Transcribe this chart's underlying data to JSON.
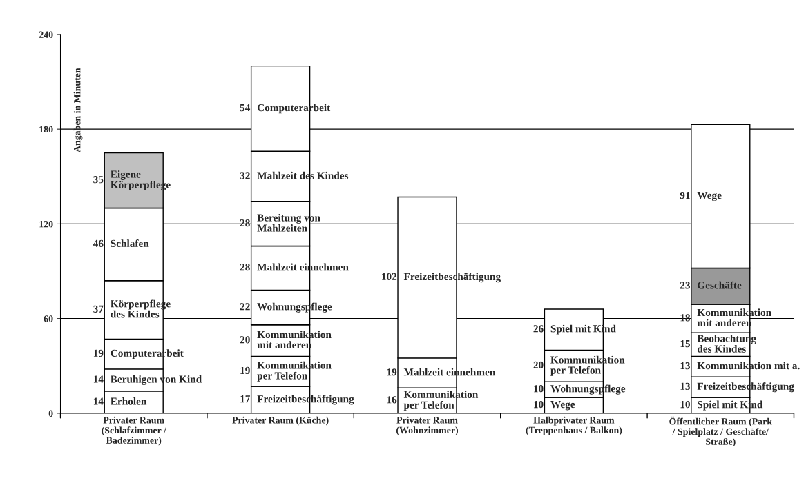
{
  "chart_data": {
    "type": "bar",
    "stacked": true,
    "ylabel": "Angaben in Minuten",
    "categories": [
      "Privater Raum\n(Schlafzimmer /\nBadezimmer)",
      "Privater Raum (Küche)",
      "Privater Raum\n(Wohnzimmer)",
      "Halbprivater Raum\n(Treppenhaus / Balkon)",
      "Öffentlicher Raum (Park\n/ Spielplatz / Geschäfte/\nStraße)"
    ],
    "series": [
      {
        "name": "Erholen",
        "color": "#ffffff",
        "values": [
          14,
          null,
          null,
          null,
          null
        ]
      },
      {
        "name": "Beruhigen von Kind",
        "color": "#ffffff",
        "values": [
          14,
          null,
          null,
          null,
          null
        ]
      },
      {
        "name": "Computerarbeit",
        "color": "#ffffff",
        "values": [
          19,
          null,
          null,
          null,
          null
        ]
      },
      {
        "name": "Körperpflege\ndes Kindes",
        "color": "#ffffff",
        "values": [
          37,
          null,
          null,
          null,
          null
        ]
      },
      {
        "name": "Schlafen",
        "color": "#ffffff",
        "values": [
          46,
          null,
          null,
          null,
          null
        ]
      },
      {
        "name": "Eigene\nKörperpflege",
        "color": "#c0c0c0",
        "values": [
          35,
          null,
          null,
          null,
          null
        ]
      },
      {
        "name": "Freizeitbeschäftigung",
        "color": "#ffffff",
        "values": [
          null,
          17,
          null,
          null,
          null
        ]
      },
      {
        "name": "Kommunikation\nper Telefon",
        "color": "#ffffff",
        "values": [
          null,
          19,
          null,
          null,
          null
        ]
      },
      {
        "name": "Kommunikation\nmit anderen",
        "color": "#ffffff",
        "values": [
          null,
          20,
          null,
          null,
          null
        ]
      },
      {
        "name": "Wohnungspflege",
        "color": "#ffffff",
        "values": [
          null,
          22,
          null,
          null,
          null
        ]
      },
      {
        "name": "Mahlzeit einnehmen",
        "color": "#ffffff",
        "values": [
          null,
          28,
          null,
          null,
          null
        ]
      },
      {
        "name": "Bereitung von\nMahlzeiten",
        "color": "#ffffff",
        "values": [
          null,
          28,
          null,
          null,
          null
        ]
      },
      {
        "name": "Mahlzeit des Kindes",
        "color": "#ffffff",
        "values": [
          null,
          32,
          null,
          null,
          null
        ]
      },
      {
        "name": "Computerarbeit",
        "color": "#ffffff",
        "values": [
          null,
          54,
          null,
          null,
          null
        ]
      },
      {
        "name": "Kommunikation\nper Telefon",
        "color": "#ffffff",
        "values": [
          null,
          null,
          16,
          null,
          null
        ]
      },
      {
        "name": "Mahlzeit einnehmen",
        "color": "#ffffff",
        "values": [
          null,
          null,
          19,
          null,
          null
        ]
      },
      {
        "name": "Freizeitbeschäftigung",
        "color": "#ffffff",
        "values": [
          null,
          null,
          102,
          null,
          null
        ]
      },
      {
        "name": "Wege",
        "color": "#ffffff",
        "values": [
          null,
          null,
          null,
          10,
          null
        ]
      },
      {
        "name": "Wohnungspflege",
        "color": "#ffffff",
        "values": [
          null,
          null,
          null,
          10,
          null
        ]
      },
      {
        "name": "Kommunikation\nper Telefon",
        "color": "#ffffff",
        "values": [
          null,
          null,
          null,
          20,
          null
        ]
      },
      {
        "name": "Spiel mit Kind",
        "color": "#ffffff",
        "values": [
          null,
          null,
          null,
          26,
          null
        ]
      },
      {
        "name": "Spiel mit Kind",
        "color": "#ffffff",
        "values": [
          null,
          null,
          null,
          null,
          10
        ]
      },
      {
        "name": "Freizeitbeschäftigung",
        "color": "#ffffff",
        "values": [
          null,
          null,
          null,
          null,
          13
        ]
      },
      {
        "name": "Kommunikation mit a.",
        "color": "#ffffff",
        "values": [
          null,
          null,
          null,
          null,
          13
        ]
      },
      {
        "name": "Beobachtung\ndes Kindes",
        "color": "#ffffff",
        "values": [
          null,
          null,
          null,
          null,
          15
        ]
      },
      {
        "name": "Kommunikation\nmit anderen",
        "color": "#ffffff",
        "values": [
          null,
          null,
          null,
          null,
          18
        ]
      },
      {
        "name": "Geschäfte",
        "color": "#999999",
        "values": [
          null,
          null,
          null,
          null,
          23
        ]
      },
      {
        "name": "Wege",
        "color": "#ffffff",
        "values": [
          null,
          null,
          null,
          null,
          91
        ]
      }
    ],
    "data_labels": true,
    "ylim": [
      0,
      240
    ],
    "yticks": [
      0,
      60,
      120,
      180,
      240
    ],
    "grid": "y"
  }
}
